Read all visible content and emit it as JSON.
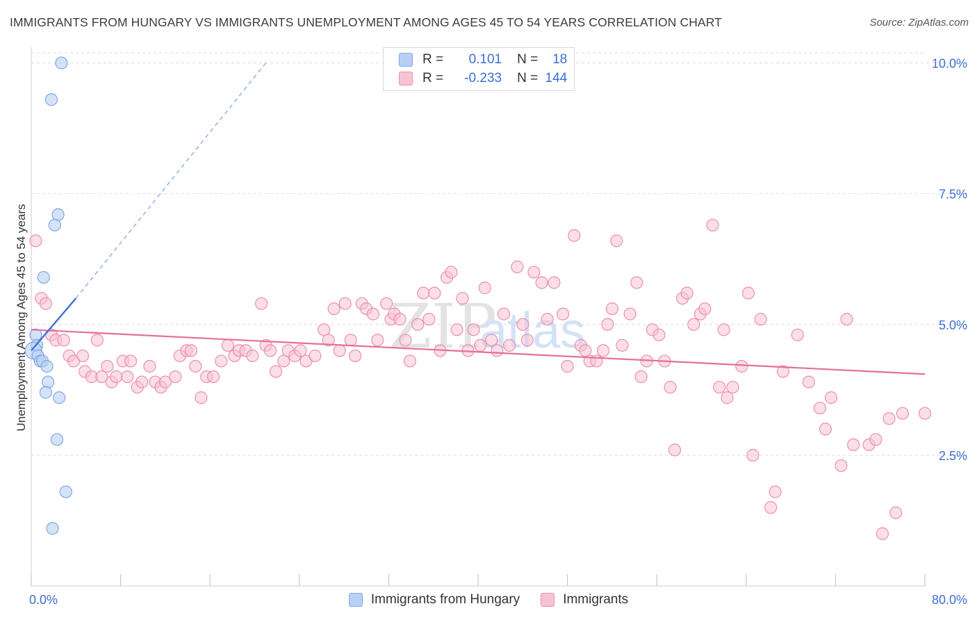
{
  "header": {
    "title": "IMMIGRANTS FROM HUNGARY VS IMMIGRANTS UNEMPLOYMENT AMONG AGES 45 TO 54 YEARS CORRELATION CHART",
    "source": "Source: ZipAtlas.com"
  },
  "legend": {
    "rows": [
      {
        "r_label": "R =",
        "r_value": "0.101",
        "n_label": "N =",
        "n_value": "18"
      },
      {
        "r_label": "R =",
        "r_value": "-0.233",
        "n_label": "N =",
        "n_value": "144"
      }
    ]
  },
  "watermark": {
    "zip": "ZIP",
    "atlas": "atlas"
  },
  "colors": {
    "blue_fill": "#b7d0f3",
    "blue_stroke": "#7fa7e3",
    "blue_line": "#3a74d8",
    "pink_fill": "#f7c3d3",
    "pink_stroke": "#eb8faf",
    "pink_line": "#e66f98",
    "axis_text": "#3b6fd6",
    "grid": "#d9d9d9"
  },
  "chart_data": {
    "type": "scatter",
    "title": "IMMIGRANTS FROM HUNGARY VS IMMIGRANTS UNEMPLOYMENT AMONG AGES 45 TO 54 YEARS CORRELATION CHART",
    "xlabel": "",
    "ylabel": "Unemployment Among Ages 45 to 54 years",
    "xlim": [
      0,
      80
    ],
    "ylim": [
      0,
      10.3
    ],
    "x_tick_labels": [
      "0.0%",
      "80.0%"
    ],
    "y_ticks": [
      2.5,
      5.0,
      7.5,
      10.0
    ],
    "y_tick_labels": [
      "2.5%",
      "5.0%",
      "7.5%",
      "10.0%"
    ],
    "grid": true,
    "legend_position": "bottom",
    "series": [
      {
        "name": "Immigrants from Hungary",
        "color": "blue",
        "r": 0.101,
        "n": 18,
        "points": [
          [
            2.7,
            10.0
          ],
          [
            1.8,
            9.3
          ],
          [
            2.4,
            7.1
          ],
          [
            2.1,
            6.9
          ],
          [
            1.1,
            5.9
          ],
          [
            0.4,
            4.8
          ],
          [
            0.5,
            4.6
          ],
          [
            0.2,
            4.5
          ],
          [
            0.6,
            4.4
          ],
          [
            0.8,
            4.3
          ],
          [
            1.0,
            4.3
          ],
          [
            1.4,
            4.2
          ],
          [
            1.5,
            3.9
          ],
          [
            1.3,
            3.7
          ],
          [
            2.5,
            3.6
          ],
          [
            2.3,
            2.8
          ],
          [
            3.1,
            1.8
          ],
          [
            1.9,
            1.1
          ]
        ],
        "trend": {
          "x": [
            0.0,
            4.0
          ],
          "y": [
            4.5,
            5.5
          ]
        },
        "trend_extension": {
          "x": [
            4.0,
            21.0
          ],
          "y": [
            5.5,
            10.0
          ]
        }
      },
      {
        "name": "Immigrants",
        "color": "pink",
        "r": -0.233,
        "n": 144,
        "trend": {
          "x": [
            0.0,
            80.0
          ],
          "y": [
            4.9,
            4.05
          ]
        },
        "points": [
          [
            0.4,
            6.6
          ],
          [
            0.9,
            5.5
          ],
          [
            1.3,
            5.4
          ],
          [
            1.8,
            4.8
          ],
          [
            2.2,
            4.7
          ],
          [
            2.9,
            4.7
          ],
          [
            3.4,
            4.4
          ],
          [
            3.8,
            4.3
          ],
          [
            4.6,
            4.4
          ],
          [
            4.8,
            4.1
          ],
          [
            5.4,
            4.0
          ],
          [
            5.9,
            4.7
          ],
          [
            6.3,
            4.0
          ],
          [
            6.8,
            4.2
          ],
          [
            7.2,
            3.9
          ],
          [
            7.6,
            4.0
          ],
          [
            8.2,
            4.3
          ],
          [
            8.6,
            4.0
          ],
          [
            8.9,
            4.3
          ],
          [
            9.5,
            3.8
          ],
          [
            9.9,
            3.9
          ],
          [
            10.6,
            4.2
          ],
          [
            11.1,
            3.9
          ],
          [
            11.6,
            3.8
          ],
          [
            12.0,
            3.9
          ],
          [
            12.9,
            4.0
          ],
          [
            13.3,
            4.4
          ],
          [
            13.9,
            4.5
          ],
          [
            14.3,
            4.5
          ],
          [
            14.7,
            4.2
          ],
          [
            15.2,
            3.6
          ],
          [
            15.7,
            4.0
          ],
          [
            16.3,
            4.0
          ],
          [
            17.0,
            4.3
          ],
          [
            17.6,
            4.6
          ],
          [
            18.2,
            4.4
          ],
          [
            18.6,
            4.5
          ],
          [
            19.2,
            4.5
          ],
          [
            19.8,
            4.4
          ],
          [
            20.6,
            5.4
          ],
          [
            21.0,
            4.6
          ],
          [
            21.4,
            4.5
          ],
          [
            21.9,
            4.1
          ],
          [
            22.6,
            4.3
          ],
          [
            23.0,
            4.5
          ],
          [
            23.6,
            4.4
          ],
          [
            24.1,
            4.5
          ],
          [
            24.6,
            4.3
          ],
          [
            25.4,
            4.4
          ],
          [
            26.2,
            4.9
          ],
          [
            26.6,
            4.7
          ],
          [
            27.1,
            5.3
          ],
          [
            27.6,
            4.5
          ],
          [
            28.1,
            5.4
          ],
          [
            28.6,
            4.7
          ],
          [
            29.0,
            4.4
          ],
          [
            29.6,
            5.4
          ],
          [
            30.0,
            5.3
          ],
          [
            30.6,
            5.2
          ],
          [
            31.0,
            4.7
          ],
          [
            31.8,
            5.4
          ],
          [
            32.2,
            5.1
          ],
          [
            32.5,
            5.2
          ],
          [
            33.0,
            5.1
          ],
          [
            33.5,
            4.7
          ],
          [
            33.9,
            4.3
          ],
          [
            34.6,
            5.0
          ],
          [
            35.1,
            5.6
          ],
          [
            35.6,
            5.1
          ],
          [
            36.1,
            5.6
          ],
          [
            36.6,
            4.5
          ],
          [
            37.2,
            5.9
          ],
          [
            37.6,
            6.0
          ],
          [
            38.1,
            4.9
          ],
          [
            38.6,
            5.5
          ],
          [
            39.1,
            4.5
          ],
          [
            39.6,
            4.9
          ],
          [
            40.2,
            4.6
          ],
          [
            40.6,
            5.7
          ],
          [
            41.2,
            4.7
          ],
          [
            41.7,
            4.5
          ],
          [
            42.3,
            5.2
          ],
          [
            42.8,
            4.6
          ],
          [
            43.5,
            6.1
          ],
          [
            44.0,
            5.0
          ],
          [
            44.4,
            4.7
          ],
          [
            45.0,
            6.0
          ],
          [
            45.7,
            5.8
          ],
          [
            46.2,
            5.1
          ],
          [
            46.8,
            5.8
          ],
          [
            47.6,
            5.2
          ],
          [
            48.0,
            4.2
          ],
          [
            48.6,
            6.7
          ],
          [
            49.2,
            4.6
          ],
          [
            49.6,
            4.5
          ],
          [
            50.0,
            4.3
          ],
          [
            50.6,
            4.3
          ],
          [
            51.2,
            4.5
          ],
          [
            51.6,
            5.0
          ],
          [
            52.0,
            5.3
          ],
          [
            52.4,
            6.6
          ],
          [
            52.9,
            4.6
          ],
          [
            53.6,
            5.2
          ],
          [
            54.2,
            5.8
          ],
          [
            54.6,
            4.0
          ],
          [
            55.1,
            4.3
          ],
          [
            55.6,
            4.9
          ],
          [
            56.2,
            4.8
          ],
          [
            56.7,
            4.3
          ],
          [
            57.2,
            3.8
          ],
          [
            57.6,
            2.6
          ],
          [
            58.3,
            5.5
          ],
          [
            58.7,
            5.6
          ],
          [
            59.3,
            5.0
          ],
          [
            59.9,
            5.2
          ],
          [
            60.3,
            5.3
          ],
          [
            61.0,
            6.9
          ],
          [
            61.6,
            3.8
          ],
          [
            62.0,
            4.9
          ],
          [
            62.3,
            3.6
          ],
          [
            62.8,
            3.8
          ],
          [
            63.6,
            4.2
          ],
          [
            64.2,
            5.6
          ],
          [
            64.6,
            2.5
          ],
          [
            65.3,
            5.1
          ],
          [
            66.2,
            1.5
          ],
          [
            66.6,
            1.8
          ],
          [
            67.3,
            4.1
          ],
          [
            68.6,
            4.8
          ],
          [
            69.6,
            3.9
          ],
          [
            70.6,
            3.4
          ],
          [
            71.1,
            3.0
          ],
          [
            71.6,
            3.6
          ],
          [
            72.5,
            2.3
          ],
          [
            73.0,
            5.1
          ],
          [
            73.6,
            2.7
          ],
          [
            75.0,
            2.7
          ],
          [
            75.6,
            2.8
          ],
          [
            76.2,
            1.0
          ],
          [
            76.8,
            3.2
          ],
          [
            77.4,
            1.4
          ],
          [
            78.0,
            3.3
          ],
          [
            80.0,
            3.3
          ]
        ]
      }
    ]
  },
  "bottom_legend": {
    "items": [
      {
        "label": "Immigrants from Hungary"
      },
      {
        "label": "Immigrants"
      }
    ]
  }
}
